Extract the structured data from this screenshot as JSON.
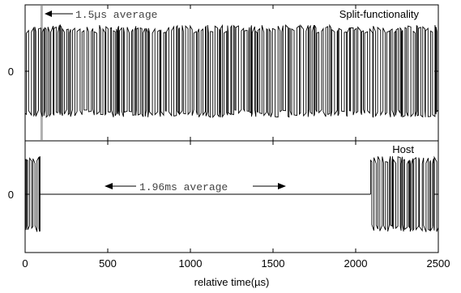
{
  "chart_data": [
    {
      "type": "line",
      "panel": "top",
      "title": "Split-functionality",
      "ytick_label": "0",
      "xlim": [
        0,
        2500
      ],
      "ylim": [
        -1,
        1
      ],
      "annotation": {
        "text": "1.5µs average",
        "x": 100,
        "arrow": "left"
      },
      "marker_x": 100,
      "series": [
        {
          "x_start": 0,
          "x_end": 2500,
          "pattern": "dense-random-pulses",
          "high": 0.85,
          "low": -0.85
        }
      ]
    },
    {
      "type": "line",
      "panel": "bottom",
      "title": "Host",
      "ytick_label": "0",
      "xlim": [
        0,
        2500
      ],
      "ylim": [
        -1,
        1
      ],
      "annotation": {
        "text": "1.96ms average",
        "x_from": 500,
        "x_to": 1600,
        "arrow": "both"
      },
      "series": [
        {
          "x_start": 0,
          "x_end": 90,
          "pattern": "dense-random-pulses",
          "high": 0.85,
          "low": -0.85
        },
        {
          "x_start": 90,
          "x_end": 2090,
          "pattern": "flat",
          "value": 0
        },
        {
          "x_start": 2090,
          "x_end": 2500,
          "pattern": "dense-random-pulses",
          "high": 0.85,
          "low": -0.85
        }
      ]
    }
  ],
  "x_axis": {
    "label": "relative time(µs)",
    "ticks": [
      0,
      500,
      1000,
      1500,
      2000,
      2500
    ],
    "tick_labels": [
      "0",
      "500",
      "1000",
      "1500",
      "2000",
      "2500"
    ]
  },
  "colors": {
    "line": "#000000",
    "marker": "#b0b0b0",
    "background": "#ffffff"
  }
}
